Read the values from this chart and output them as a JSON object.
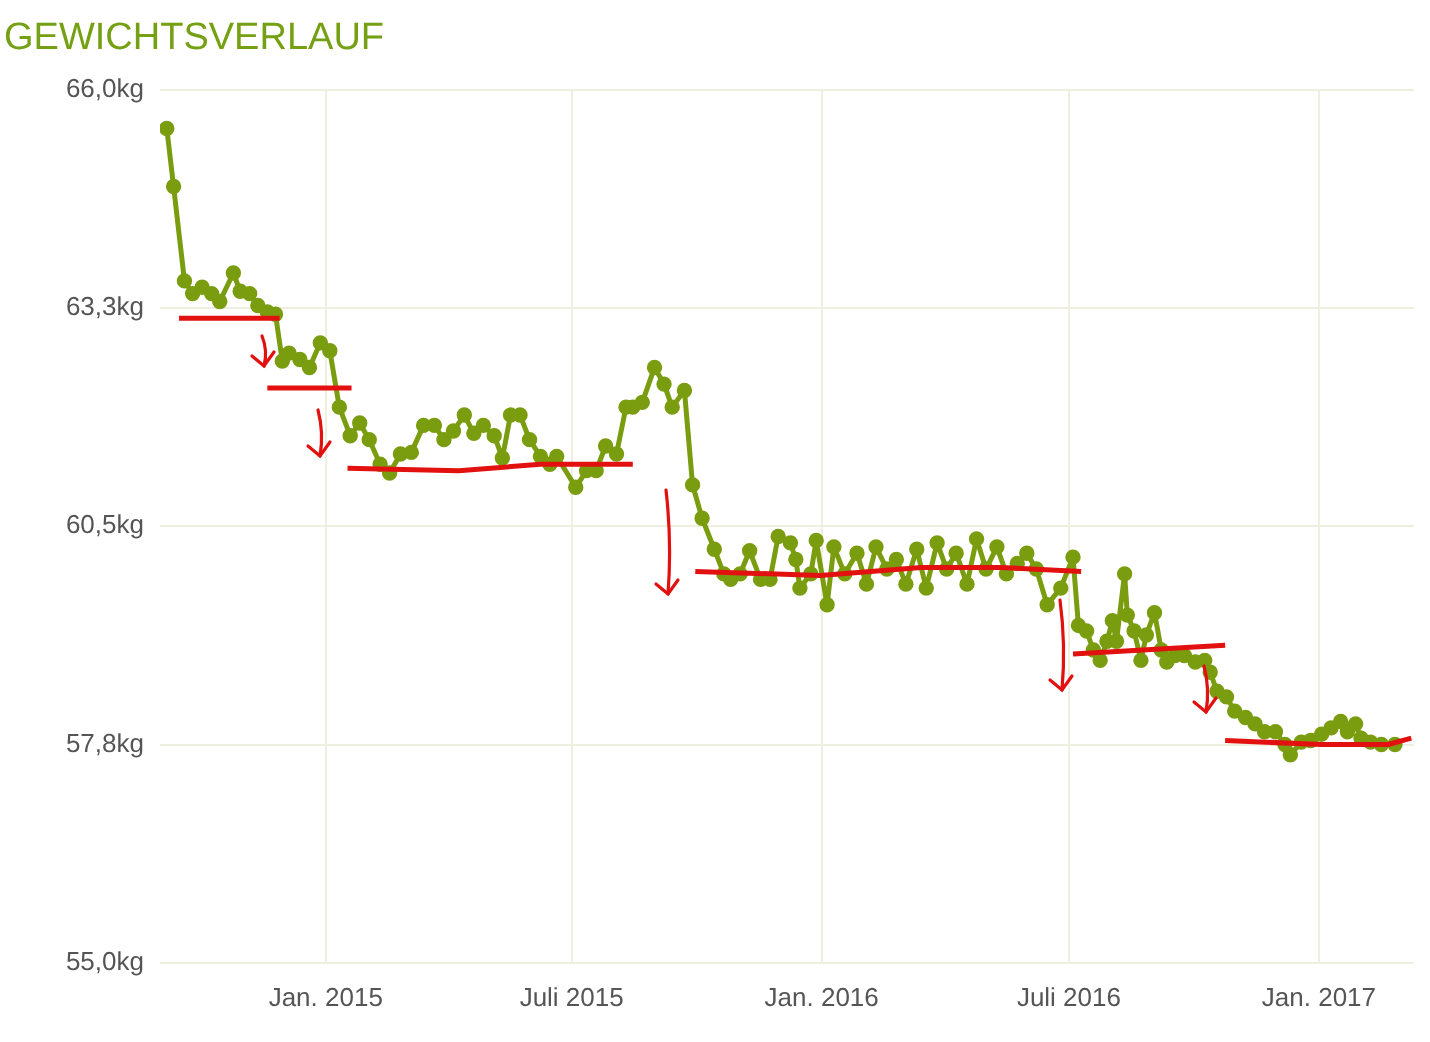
{
  "chart_data": {
    "type": "line",
    "title": "GEWICHTSVERLAUF",
    "xlim": [
      "2014-09-01",
      "2017-03-12"
    ],
    "xticks": [
      {
        "value": "2015-01-01",
        "label": "Jan. 2015"
      },
      {
        "value": "2015-07-01",
        "label": "Juli 2015"
      },
      {
        "value": "2016-01-01",
        "label": "Jan. 2016"
      },
      {
        "value": "2016-07-01",
        "label": "Juli 2016"
      },
      {
        "value": "2017-01-01",
        "label": "Jan. 2017"
      }
    ],
    "ylim": [
      55,
      66
    ],
    "yticks": [
      {
        "value": 55,
        "label": "55,0kg"
      },
      {
        "value": 57.75,
        "label": "57,8kg"
      },
      {
        "value": 60.5,
        "label": "60,5kg"
      },
      {
        "value": 63.25,
        "label": "63,3kg"
      },
      {
        "value": 66,
        "label": "66,0kg"
      }
    ],
    "grid": true,
    "legend": false,
    "marker": "circle",
    "line_style": "solid",
    "series": [
      {
        "color": "#7a9c0f",
        "x": [
          "2014-09-06",
          "2014-09-11",
          "2014-09-19",
          "2014-09-25",
          "2014-10-02",
          "2014-10-09",
          "2014-10-15",
          "2014-10-25",
          "2014-10-30",
          "2014-11-06",
          "2014-11-12",
          "2014-11-19",
          "2014-11-25",
          "2014-11-30",
          "2014-12-05",
          "2014-12-13",
          "2014-12-20",
          "2014-12-28",
          "2015-01-04",
          "2015-01-11",
          "2015-01-19",
          "2015-01-26",
          "2015-02-02",
          "2015-02-10",
          "2015-02-17",
          "2015-02-25",
          "2015-03-05",
          "2015-03-14",
          "2015-03-22",
          "2015-03-29",
          "2015-04-05",
          "2015-04-13",
          "2015-04-20",
          "2015-04-27",
          "2015-05-05",
          "2015-05-11",
          "2015-05-17",
          "2015-05-24",
          "2015-05-31",
          "2015-06-08",
          "2015-06-15",
          "2015-06-20",
          "2015-07-04",
          "2015-07-12",
          "2015-07-19",
          "2015-07-26",
          "2015-08-03",
          "2015-08-10",
          "2015-08-15",
          "2015-08-22",
          "2015-08-31",
          "2015-09-07",
          "2015-09-13",
          "2015-09-22",
          "2015-09-28",
          "2015-10-05",
          "2015-10-14",
          "2015-10-21",
          "2015-10-26",
          "2015-11-02",
          "2015-11-09",
          "2015-11-17",
          "2015-11-24",
          "2015-11-30",
          "2015-12-09",
          "2015-12-13",
          "2015-12-16",
          "2015-12-24",
          "2015-12-28",
          "2016-01-05",
          "2016-01-10",
          "2016-01-18",
          "2016-01-27",
          "2016-02-03",
          "2016-02-10",
          "2016-02-18",
          "2016-02-25",
          "2016-03-03",
          "2016-03-11",
          "2016-03-18",
          "2016-03-26",
          "2016-04-02",
          "2016-04-09",
          "2016-04-17",
          "2016-04-24",
          "2016-05-01",
          "2016-05-09",
          "2016-05-16",
          "2016-05-24",
          "2016-05-31",
          "2016-06-07",
          "2016-06-15",
          "2016-06-25",
          "2016-07-04",
          "2016-07-08",
          "2016-07-14",
          "2016-07-19",
          "2016-07-24",
          "2016-07-29",
          "2016-08-02",
          "2016-08-05",
          "2016-08-11",
          "2016-08-13",
          "2016-08-18",
          "2016-08-23",
          "2016-08-27",
          "2016-09-02",
          "2016-09-07",
          "2016-09-11",
          "2016-09-17",
          "2016-09-24",
          "2016-10-02",
          "2016-10-09",
          "2016-10-13",
          "2016-10-18",
          "2016-10-25",
          "2016-10-31",
          "2016-11-08",
          "2016-11-15",
          "2016-11-22",
          "2016-11-30",
          "2016-12-07",
          "2016-12-11",
          "2016-12-19",
          "2016-12-26",
          "2017-01-03",
          "2017-01-10",
          "2017-01-17",
          "2017-01-22",
          "2017-01-28",
          "2017-02-01",
          "2017-02-08",
          "2017-02-16",
          "2017-02-26"
        ],
        "values": [
          65.51,
          64.78,
          63.59,
          63.43,
          63.51,
          63.43,
          63.33,
          63.69,
          63.46,
          63.43,
          63.28,
          63.2,
          63.17,
          62.58,
          62.68,
          62.6,
          62.5,
          62.81,
          62.71,
          62.0,
          61.64,
          61.8,
          61.59,
          61.28,
          61.17,
          61.41,
          61.43,
          61.77,
          61.77,
          61.59,
          61.7,
          61.9,
          61.67,
          61.77,
          61.64,
          61.36,
          61.9,
          61.9,
          61.59,
          61.38,
          61.28,
          61.38,
          60.99,
          61.2,
          61.2,
          61.51,
          61.41,
          62.0,
          62.0,
          62.06,
          62.5,
          62.29,
          62.0,
          62.21,
          61.02,
          60.6,
          60.21,
          59.9,
          59.83,
          59.9,
          60.19,
          59.83,
          59.83,
          60.37,
          60.29,
          60.08,
          59.72,
          59.9,
          60.32,
          59.51,
          60.24,
          59.9,
          60.16,
          59.77,
          60.24,
          59.96,
          60.08,
          59.77,
          60.21,
          59.72,
          60.29,
          59.96,
          60.16,
          59.77,
          60.34,
          59.96,
          60.24,
          59.9,
          60.03,
          60.16,
          59.96,
          59.51,
          59.72,
          60.11,
          59.25,
          59.18,
          58.94,
          58.81,
          59.05,
          59.31,
          59.05,
          59.9,
          59.38,
          59.18,
          58.81,
          59.13,
          59.41,
          58.94,
          58.79,
          58.87,
          58.87,
          58.79,
          58.81,
          58.66,
          58.42,
          58.35,
          58.17,
          58.09,
          58.01,
          57.91,
          57.91,
          57.75,
          57.62,
          57.78,
          57.8,
          57.88,
          57.96,
          58.04,
          57.91,
          58.01,
          57.83,
          57.78,
          57.75,
          57.75
        ]
      },
      {
        "color": "#e31010",
        "marker": "none",
        "x": [
          "2014-09-15",
          "2014-11-28"
        ],
        "values": [
          63.12,
          63.12
        ]
      },
      {
        "color": "#e31010",
        "marker": "none",
        "x": [
          "2014-11-19",
          "2015-01-20"
        ],
        "values": [
          62.24,
          62.24
        ]
      },
      {
        "color": "#e31010",
        "marker": "none",
        "x": [
          "2015-01-17",
          "2015-04-09",
          "2015-06-08",
          "2015-08-15"
        ],
        "values": [
          61.23,
          61.2,
          61.28,
          61.28
        ]
      },
      {
        "color": "#e31010",
        "marker": "none",
        "x": [
          "2015-09-30",
          "2015-12-31",
          "2016-03-14",
          "2016-05-12",
          "2016-07-10"
        ],
        "values": [
          59.93,
          59.88,
          59.98,
          59.98,
          59.93
        ]
      },
      {
        "color": "#e31010",
        "marker": "none",
        "x": [
          "2016-07-04",
          "2016-10-24"
        ],
        "values": [
          58.89,
          59.0
        ]
      },
      {
        "color": "#e31010",
        "marker": "none",
        "x": [
          "2016-10-24",
          "2017-01-03",
          "2017-02-21",
          "2017-03-10"
        ],
        "values": [
          57.8,
          57.75,
          57.75,
          57.83
        ]
      }
    ]
  }
}
